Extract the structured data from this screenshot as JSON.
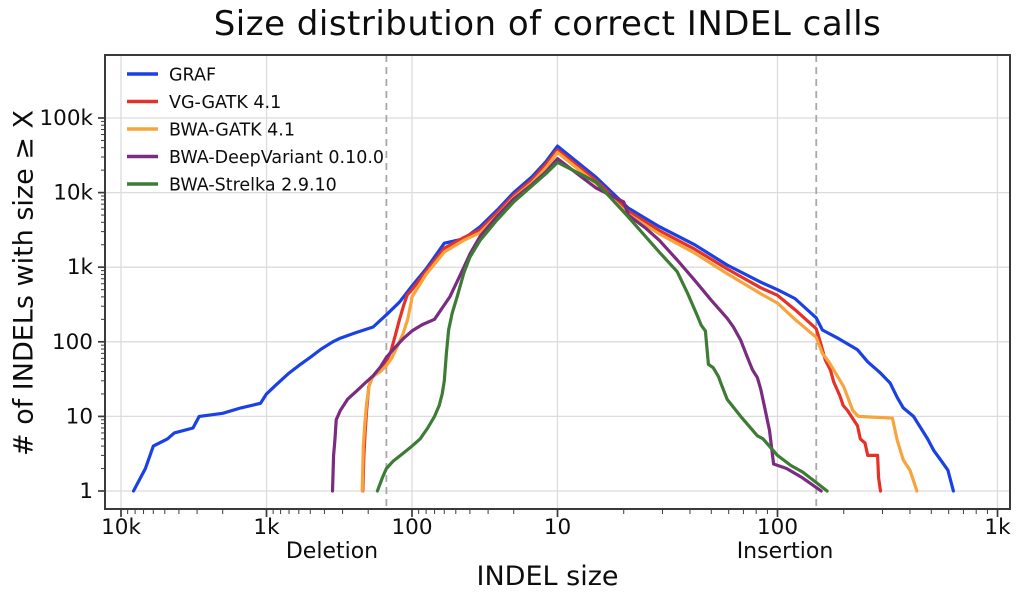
{
  "chart_data": {
    "type": "line",
    "title": "Size distribution of correct INDEL calls",
    "ylabel": "# of INDELs with size ≥ X",
    "xlabel": "INDEL size",
    "x_side_labels": [
      "Deletion",
      "Insertion"
    ],
    "x_axis": {
      "scale": "split-log",
      "deletion_ticks": [
        {
          "value": 10000,
          "label": "10k"
        },
        {
          "value": 1000,
          "label": "1k"
        },
        {
          "value": 100,
          "label": "100"
        },
        {
          "value": 10,
          "label": "10"
        }
      ],
      "insertion_ticks": [
        {
          "value": 100,
          "label": "100"
        },
        {
          "value": 1000,
          "label": "1k"
        }
      ]
    },
    "y_axis": {
      "scale": "log",
      "ticks": [
        {
          "value": 1,
          "label": "1"
        },
        {
          "value": 10,
          "label": "10"
        },
        {
          "value": 100,
          "label": "100"
        },
        {
          "value": 1000,
          "label": "1k"
        },
        {
          "value": 10000,
          "label": "10k"
        },
        {
          "value": 100000,
          "label": "100k"
        }
      ],
      "range": [
        1,
        700000
      ]
    },
    "dashed_guides_at_size": [
      150,
      150
    ],
    "style": {
      "grid_color": "#dcdcdc",
      "guide_color": "#a8a8a8",
      "spine_color": "#3a3a3a",
      "grid_on": true,
      "legend_position": "upper-left"
    },
    "series": [
      {
        "name": "GRAF",
        "color": "#1a41e6",
        "deletion": [
          [
            8200,
            1
          ],
          [
            6800,
            2
          ],
          [
            6000,
            4
          ],
          [
            4800,
            5
          ],
          [
            4300,
            6
          ],
          [
            3200,
            7
          ],
          [
            2900,
            10
          ],
          [
            2000,
            11
          ],
          [
            1500,
            13
          ],
          [
            1100,
            15
          ],
          [
            1000,
            20
          ],
          [
            850,
            27
          ],
          [
            700,
            38
          ],
          [
            600,
            48
          ],
          [
            500,
            62
          ],
          [
            420,
            80
          ],
          [
            350,
            100
          ],
          [
            310,
            112
          ],
          [
            250,
            130
          ],
          [
            185,
            158
          ],
          [
            150,
            230
          ],
          [
            122,
            340
          ],
          [
            100,
            560
          ],
          [
            80,
            950
          ],
          [
            60,
            2100
          ],
          [
            44,
            2400
          ],
          [
            34,
            3500
          ],
          [
            26,
            5800
          ],
          [
            20,
            10000
          ],
          [
            15,
            16300
          ],
          [
            12,
            26000
          ],
          [
            10,
            42000
          ]
        ],
        "insertion": [
          [
            10,
            42000
          ],
          [
            15,
            16000
          ],
          [
            21,
            6200
          ],
          [
            29,
            3500
          ],
          [
            42,
            2000
          ],
          [
            59,
            1070
          ],
          [
            84,
            630
          ],
          [
            100,
            500
          ],
          [
            120,
            380
          ],
          [
            150,
            210
          ],
          [
            160,
            144
          ],
          [
            190,
            110
          ],
          [
            231,
            78
          ],
          [
            257,
            54
          ],
          [
            294,
            38
          ],
          [
            325,
            28
          ],
          [
            350,
            18
          ],
          [
            373,
            13
          ],
          [
            415,
            10
          ],
          [
            448,
            7
          ],
          [
            481,
            5
          ],
          [
            513,
            3.5
          ],
          [
            552,
            2.6
          ],
          [
            595,
            1.9
          ],
          [
            630,
            1
          ]
        ]
      },
      {
        "name": "VG-GATK 4.1",
        "color": "#e53228",
        "deletion": [
          [
            218,
            1
          ],
          [
            214,
            3
          ],
          [
            210,
            6
          ],
          [
            205,
            12
          ],
          [
            198,
            25
          ],
          [
            188,
            33
          ],
          [
            170,
            42
          ],
          [
            150,
            55
          ],
          [
            140,
            73
          ],
          [
            130,
            123
          ],
          [
            122,
            197
          ],
          [
            115,
            294
          ],
          [
            108,
            423
          ],
          [
            100,
            500
          ],
          [
            80,
            880
          ],
          [
            60,
            1800
          ],
          [
            44,
            2500
          ],
          [
            34,
            3200
          ],
          [
            26,
            5400
          ],
          [
            20,
            9200
          ],
          [
            15,
            14800
          ],
          [
            12,
            24000
          ],
          [
            10,
            37500
          ]
        ],
        "insertion": [
          [
            10,
            37500
          ],
          [
            15,
            14500
          ],
          [
            21,
            5600
          ],
          [
            29,
            3100
          ],
          [
            42,
            1750
          ],
          [
            59,
            950
          ],
          [
            84,
            530
          ],
          [
            100,
            420
          ],
          [
            120,
            270
          ],
          [
            150,
            150
          ],
          [
            157,
            96
          ],
          [
            165,
            57
          ],
          [
            174,
            42
          ],
          [
            180,
            29
          ],
          [
            192,
            19
          ],
          [
            199,
            14
          ],
          [
            208,
            12
          ],
          [
            231,
            7.5
          ],
          [
            238,
            5
          ],
          [
            250,
            4.4
          ],
          [
            257,
            3
          ],
          [
            285,
            3
          ],
          [
            288,
            1.5
          ],
          [
            294,
            1
          ]
        ]
      },
      {
        "name": "BWA-GATK 4.1",
        "color": "#f8a43d",
        "deletion": [
          [
            220,
            1
          ],
          [
            216,
            4
          ],
          [
            211,
            8
          ],
          [
            205,
            15
          ],
          [
            197,
            26
          ],
          [
            187,
            34
          ],
          [
            165,
            40
          ],
          [
            150,
            48
          ],
          [
            138,
            60
          ],
          [
            125,
            90
          ],
          [
            115,
            130
          ],
          [
            107,
            200
          ],
          [
            101,
            350
          ],
          [
            100,
            400
          ],
          [
            80,
            800
          ],
          [
            60,
            1600
          ],
          [
            44,
            2300
          ],
          [
            34,
            2900
          ],
          [
            26,
            4900
          ],
          [
            20,
            8500
          ],
          [
            15,
            13500
          ],
          [
            12,
            21500
          ],
          [
            10,
            34500
          ]
        ],
        "insertion": [
          [
            10,
            34500
          ],
          [
            15,
            13200
          ],
          [
            21,
            5100
          ],
          [
            29,
            2800
          ],
          [
            42,
            1550
          ],
          [
            59,
            820
          ],
          [
            84,
            440
          ],
          [
            100,
            330
          ],
          [
            120,
            200
          ],
          [
            150,
            115
          ],
          [
            160,
            70
          ],
          [
            171,
            54
          ],
          [
            180,
            42
          ],
          [
            200,
            25
          ],
          [
            220,
            12
          ],
          [
            233,
            10
          ],
          [
            333,
            9.5
          ],
          [
            350,
            4.8
          ],
          [
            373,
            2.6
          ],
          [
            400,
            1.9
          ],
          [
            430,
            1
          ]
        ]
      },
      {
        "name": "BWA-DeepVariant 0.10.0",
        "color": "#7a2c80",
        "deletion": [
          [
            352,
            1
          ],
          [
            346,
            3
          ],
          [
            338,
            5
          ],
          [
            332,
            9
          ],
          [
            311,
            12
          ],
          [
            277,
            17
          ],
          [
            240,
            22
          ],
          [
            210,
            28
          ],
          [
            185,
            35
          ],
          [
            165,
            46
          ],
          [
            150,
            62
          ],
          [
            130,
            85
          ],
          [
            115,
            110
          ],
          [
            100,
            140
          ],
          [
            85,
            170
          ],
          [
            70,
            200
          ],
          [
            55,
            400
          ],
          [
            48,
            700
          ],
          [
            44,
            1000
          ],
          [
            40,
            1500
          ],
          [
            34,
            2600
          ],
          [
            26,
            4800
          ],
          [
            20,
            8200
          ],
          [
            15,
            12800
          ],
          [
            12,
            19000
          ],
          [
            10,
            28500
          ]
        ],
        "insertion": [
          [
            10,
            28500
          ],
          [
            15,
            11500
          ],
          [
            20,
            7500
          ],
          [
            21,
            5000
          ],
          [
            25,
            3400
          ],
          [
            29,
            2300
          ],
          [
            35,
            1250
          ],
          [
            42,
            670
          ],
          [
            50,
            360
          ],
          [
            59,
            207
          ],
          [
            63,
            158
          ],
          [
            68,
            105
          ],
          [
            73,
            62
          ],
          [
            77,
            42
          ],
          [
            81,
            33
          ],
          [
            84,
            23
          ],
          [
            88,
            12
          ],
          [
            92,
            6.5
          ],
          [
            96,
            2.3
          ],
          [
            110,
            2
          ],
          [
            130,
            1.5
          ],
          [
            158,
            1
          ]
        ]
      },
      {
        "name": "BWA-Strelka 2.9.10",
        "color": "#3d7c35",
        "deletion": [
          [
            173,
            1
          ],
          [
            160,
            1.5
          ],
          [
            150,
            2
          ],
          [
            135,
            2.5
          ],
          [
            120,
            3
          ],
          [
            100,
            4
          ],
          [
            88,
            5
          ],
          [
            78,
            7
          ],
          [
            70,
            10
          ],
          [
            65,
            14
          ],
          [
            62,
            20
          ],
          [
            60,
            30
          ],
          [
            58,
            70
          ],
          [
            56,
            144
          ],
          [
            53,
            240
          ],
          [
            49,
            400
          ],
          [
            44,
            840
          ],
          [
            40,
            1360
          ],
          [
            34,
            2300
          ],
          [
            26,
            4300
          ],
          [
            20,
            7500
          ],
          [
            15,
            12300
          ],
          [
            12,
            18000
          ],
          [
            10,
            25500
          ]
        ],
        "insertion": [
          [
            10,
            25500
          ],
          [
            15,
            13800
          ],
          [
            21,
            4700
          ],
          [
            29,
            1600
          ],
          [
            35,
            870
          ],
          [
            39,
            450
          ],
          [
            43,
            230
          ],
          [
            45,
            167
          ],
          [
            47,
            140
          ],
          [
            48.5,
            50
          ],
          [
            51,
            45
          ],
          [
            54,
            34
          ],
          [
            55,
            29
          ],
          [
            59,
            17
          ],
          [
            68,
            10
          ],
          [
            81,
            5.5
          ],
          [
            86,
            5
          ],
          [
            100,
            3
          ],
          [
            115,
            2.2
          ],
          [
            130,
            1.8
          ],
          [
            150,
            1.3
          ],
          [
            168,
            1
          ]
        ]
      }
    ]
  }
}
